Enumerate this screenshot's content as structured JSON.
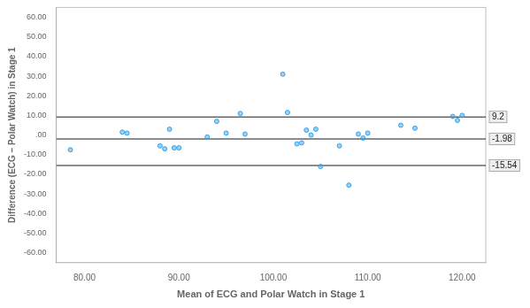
{
  "chart_data": {
    "type": "scatter",
    "xlabel": "Mean of ECG and Polar Watch in Stage 1",
    "ylabel": "Difference (ECG – Polar Watch) in Stage 1",
    "x": [
      78.5,
      84.0,
      84.5,
      88.0,
      88.5,
      89.0,
      89.5,
      90.0,
      93.0,
      94.0,
      95.0,
      96.5,
      97.0,
      101.0,
      101.5,
      102.5,
      103.0,
      103.5,
      104.0,
      104.5,
      105.0,
      107.0,
      108.0,
      109.0,
      109.5,
      110.0,
      113.5,
      115.0,
      119.0,
      119.5,
      120.0
    ],
    "values": [
      -7.5,
      1.5,
      1.0,
      -5.5,
      -7.0,
      3.0,
      -6.5,
      -6.5,
      -1.0,
      7.0,
      1.0,
      11.0,
      0.5,
      31.0,
      11.5,
      -4.5,
      -4.0,
      2.5,
      0.0,
      3.0,
      -16.0,
      -5.5,
      -25.5,
      0.5,
      -1.5,
      1.0,
      5.0,
      3.5,
      9.5,
      7.5,
      10.0
    ],
    "hlines": [
      {
        "value": 9.2,
        "label": "9.2"
      },
      {
        "value": -1.98,
        "label": "-1.98"
      },
      {
        "value": -15.54,
        "label": "-15.54"
      }
    ],
    "xlim": [
      77.0,
      122.5
    ],
    "ylim": [
      -65.0,
      65.0
    ],
    "xticks": [
      {
        "value": 80.0,
        "label": "80.00"
      },
      {
        "value": 90.0,
        "label": "90.00"
      },
      {
        "value": 100.0,
        "label": "100.00"
      },
      {
        "value": 110.0,
        "label": "110.00"
      },
      {
        "value": 120.0,
        "label": "120.00"
      }
    ],
    "yticks": [
      {
        "value": -60.0,
        "label": "-60.00"
      },
      {
        "value": -50.0,
        "label": "-50.00"
      },
      {
        "value": -40.0,
        "label": "-40.00"
      },
      {
        "value": -30.0,
        "label": "-30.00"
      },
      {
        "value": -20.0,
        "label": "-20.00"
      },
      {
        "value": -10.0,
        "label": "-10.00"
      },
      {
        "value": 0.0,
        "label": ".00"
      },
      {
        "value": 10.0,
        "label": "10.00"
      },
      {
        "value": 20.0,
        "label": "20.00"
      },
      {
        "value": 30.0,
        "label": "30.00"
      },
      {
        "value": 40.0,
        "label": "40.00"
      },
      {
        "value": 50.0,
        "label": "50.00"
      },
      {
        "value": 60.0,
        "label": "60.00"
      }
    ],
    "grid": false
  }
}
